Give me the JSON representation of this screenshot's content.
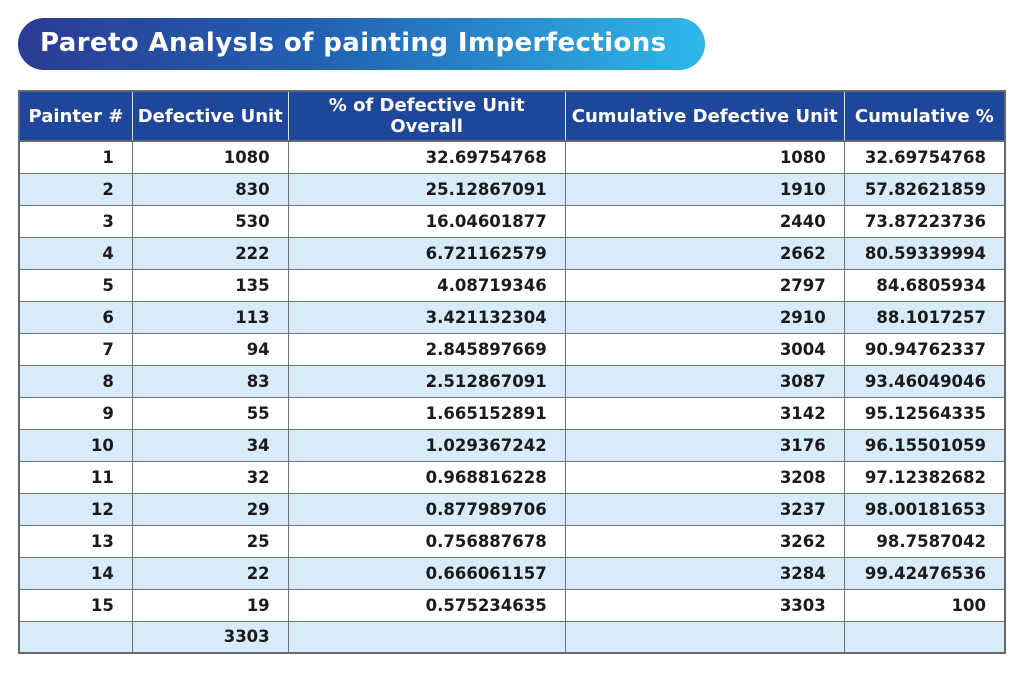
{
  "title": "Pareto AnalysIs of painting Imperfections",
  "colors": {
    "title_gradient_start": "#2a3b93",
    "title_gradient_end": "#2fb8e9",
    "header_background": "#1e479b",
    "header_text": "#ffffff",
    "row_background": "#ffffff",
    "row_alt_background": "#d8ebf8",
    "table_border": "#6d757a",
    "body_text": "#1b1b1d"
  },
  "chart_data": {
    "type": "table",
    "title": "Pareto AnalysIs of painting Imperfections",
    "columns": [
      "Painter #",
      "Defective Unit",
      "% of Defective Unit Overall",
      "Cumulative Defective Unit",
      "Cumulative %"
    ],
    "rows": [
      [
        "1",
        "1080",
        "32.69754768",
        "1080",
        "32.69754768"
      ],
      [
        "2",
        "830",
        "25.12867091",
        "1910",
        "57.82621859"
      ],
      [
        "3",
        "530",
        "16.04601877",
        "2440",
        "73.87223736"
      ],
      [
        "4",
        "222",
        "6.721162579",
        "2662",
        "80.59339994"
      ],
      [
        "5",
        "135",
        "4.08719346",
        "2797",
        "84.6805934"
      ],
      [
        "6",
        "113",
        "3.421132304",
        "2910",
        "88.1017257"
      ],
      [
        "7",
        "94",
        "2.845897669",
        "3004",
        "90.94762337"
      ],
      [
        "8",
        "83",
        "2.512867091",
        "3087",
        "93.46049046"
      ],
      [
        "9",
        "55",
        "1.665152891",
        "3142",
        "95.12564335"
      ],
      [
        "10",
        "34",
        "1.029367242",
        "3176",
        "96.15501059"
      ],
      [
        "11",
        "32",
        "0.968816228",
        "3208",
        "97.12382682"
      ],
      [
        "12",
        "29",
        "0.877989706",
        "3237",
        "98.00181653"
      ],
      [
        "13",
        "25",
        "0.756887678",
        "3262",
        "98.7587042"
      ],
      [
        "14",
        "22",
        "0.666061157",
        "3284",
        "99.42476536"
      ],
      [
        "15",
        "19",
        "0.575234635",
        "3303",
        "100"
      ]
    ],
    "total_row": [
      "",
      "3303",
      "",
      "",
      ""
    ],
    "striping": "even rows and total row are light blue, odd rows white"
  }
}
